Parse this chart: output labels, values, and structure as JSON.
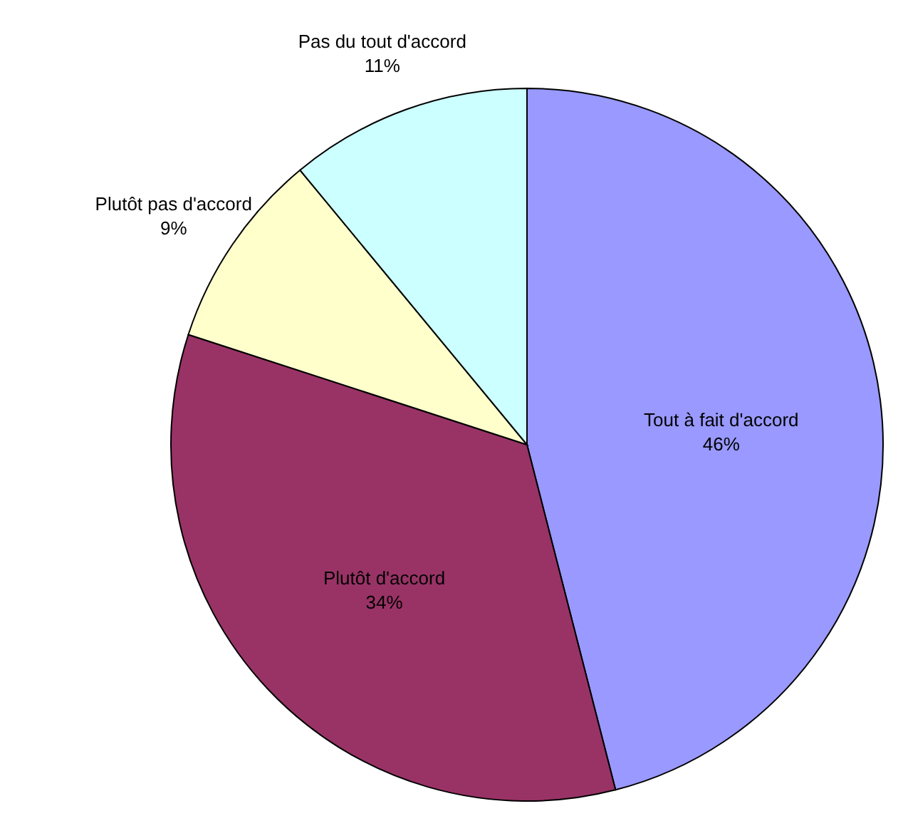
{
  "chart_data": {
    "type": "pie",
    "categories": [
      "Tout à fait d'accord",
      "Plutôt d'accord",
      "Plutôt pas d'accord",
      "Pas du tout d'accord"
    ],
    "values": [
      46,
      34,
      9,
      11
    ],
    "colors": [
      "#9999ff",
      "#993366",
      "#ffffcc",
      "#ccffff"
    ],
    "value_labels": [
      "46%",
      "34%",
      "9%",
      "11%"
    ]
  }
}
